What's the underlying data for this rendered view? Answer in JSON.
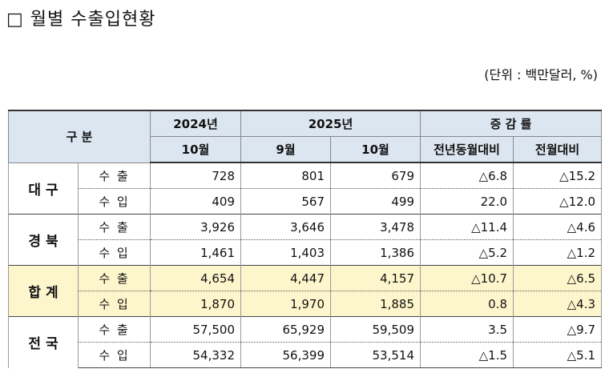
{
  "title": "□ 월별 수출입현황",
  "unit": "(단위 : 백만달러, %)",
  "table": {
    "header": {
      "group": "구 분",
      "year1": "2024년",
      "year2": "2025년",
      "change": "증 감 률",
      "sub": [
        "10월",
        "9월",
        "10월",
        "전년동월대비",
        "전월대비"
      ]
    },
    "groups": [
      {
        "region": "대 구",
        "rows": [
          [
            "수 출",
            "728",
            "801",
            "679",
            "△6.8",
            "△15.2"
          ],
          [
            "수 입",
            "409",
            "567",
            "499",
            "22.0",
            "△12.0"
          ]
        ]
      },
      {
        "region": "경 북",
        "rows": [
          [
            "수 출",
            "3,926",
            "3,646",
            "3,478",
            "△11.4",
            "△4.6"
          ],
          [
            "수 입",
            "1,461",
            "1,403",
            "1,386",
            "△5.2",
            "△1.2"
          ]
        ]
      },
      {
        "region": "합 계",
        "rows": [
          [
            "수 출",
            "4,654",
            "4,447",
            "4,157",
            "△10.7",
            "△6.5"
          ],
          [
            "수 입",
            "1,870",
            "1,970",
            "1,885",
            "0.8",
            "△4.3"
          ]
        ]
      },
      {
        "region": "전 국",
        "rows": [
          [
            "수 출",
            "57,500",
            "65,929",
            "59,509",
            "3.5",
            "△9.7"
          ],
          [
            "수 입",
            "54,332",
            "56,399",
            "53,514",
            "△1.5",
            "△5.1"
          ]
        ]
      }
    ]
  }
}
